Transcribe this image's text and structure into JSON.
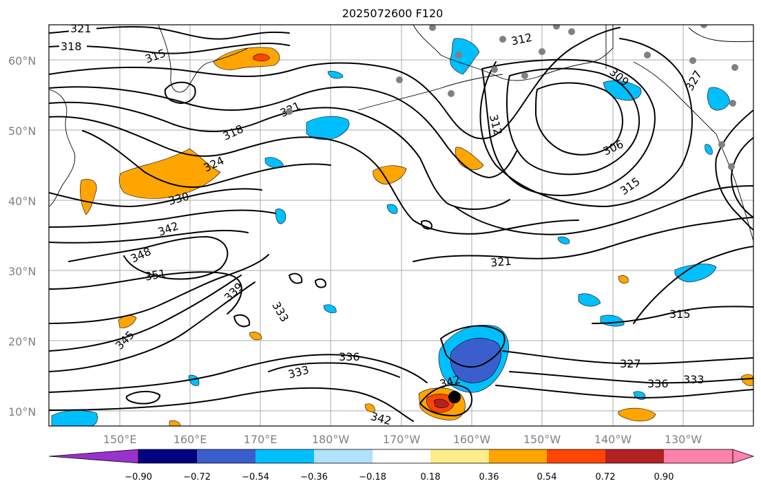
{
  "title": "2025072600 F120",
  "map": {
    "lat_labels": [
      "60°N",
      "50°N",
      "40°N",
      "30°N",
      "20°N",
      "10°N"
    ],
    "lon_labels": [
      "150°E",
      "160°E",
      "170°E",
      "180°W",
      "170°W",
      "160°W",
      "150°W",
      "140°W",
      "130°W"
    ],
    "contour_labels": [
      "321",
      "318",
      "315",
      "312",
      "309",
      "327",
      "321",
      "318",
      "324",
      "330",
      "312",
      "306",
      "315",
      "342",
      "348",
      "351",
      "321",
      "339",
      "333",
      "345",
      "336",
      "333",
      "315",
      "327",
      "336",
      "333",
      "342",
      "342"
    ],
    "colors": {
      "strong_neg": "#9932cc",
      "neg_090": "#000080",
      "neg_072": "#3a5fcd",
      "neg_054": "#00bfff",
      "neg_036": "#b0e2ff",
      "neutral": "#ffffff",
      "pos_018": "#ffec8b",
      "pos_036": "#ffa500",
      "pos_054": "#ff4500",
      "pos_072": "#b22222",
      "pos_090": "#ff82ab"
    },
    "storm_marker": "black-dot",
    "station_marker": "grey-dot"
  },
  "colorbar": {
    "ticks": [
      "−0.90",
      "−0.72",
      "−0.54",
      "−0.36",
      "−0.18",
      "0.18",
      "0.36",
      "0.54",
      "0.72",
      "0.90"
    ],
    "colors": [
      "#9932cc",
      "#000080",
      "#3a5fcd",
      "#00bfff",
      "#b0e2ff",
      "#ffffff",
      "#ffec8b",
      "#ffa500",
      "#ff4500",
      "#b22222",
      "#ff82ab"
    ]
  }
}
